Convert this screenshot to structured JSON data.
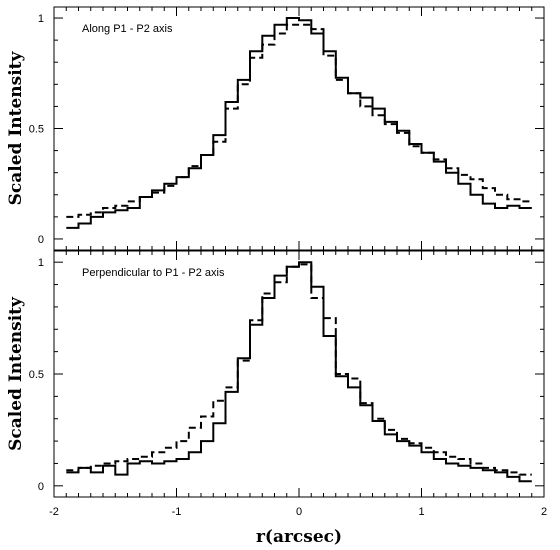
{
  "chart_data": [
    {
      "type": "line",
      "step": true,
      "panel_label": "Along P1 - P2 axis",
      "ylabel": "Scaled Intensity",
      "xlabel": "",
      "xlim": [
        -2,
        2
      ],
      "ylim": [
        -0.05,
        1.05
      ],
      "xticks": [
        "-2",
        "-1",
        "0",
        "1",
        "2"
      ],
      "yticks": [
        "0",
        "0.5",
        "1"
      ],
      "x_edges": [
        -1.9,
        -1.8,
        -1.7,
        -1.6,
        -1.5,
        -1.4,
        -1.3,
        -1.2,
        -1.1,
        -1.0,
        -0.9,
        -0.8,
        -0.7,
        -0.6,
        -0.5,
        -0.4,
        -0.3,
        -0.2,
        -0.1,
        0.0,
        0.1,
        0.2,
        0.3,
        0.4,
        0.5,
        0.6,
        0.7,
        0.8,
        0.9,
        1.0,
        1.1,
        1.2,
        1.3,
        1.4,
        1.5,
        1.6,
        1.7,
        1.8,
        1.9
      ],
      "series": [
        {
          "style": "solid",
          "values": [
            0.05,
            0.07,
            0.1,
            0.12,
            0.13,
            0.14,
            0.19,
            0.22,
            0.25,
            0.28,
            0.32,
            0.38,
            0.47,
            0.62,
            0.72,
            0.85,
            0.92,
            0.97,
            1.0,
            0.99,
            0.93,
            0.85,
            0.73,
            0.66,
            0.64,
            0.59,
            0.53,
            0.49,
            0.43,
            0.39,
            0.35,
            0.3,
            0.25,
            0.2,
            0.16,
            0.14,
            0.15,
            0.14
          ]
        },
        {
          "style": "dashed",
          "values": [
            0.1,
            0.11,
            0.12,
            0.14,
            0.15,
            0.17,
            0.19,
            0.21,
            0.24,
            0.28,
            0.33,
            0.38,
            0.44,
            0.59,
            0.7,
            0.82,
            0.88,
            0.93,
            0.97,
            0.97,
            0.95,
            0.83,
            0.72,
            0.66,
            0.6,
            0.56,
            0.52,
            0.48,
            0.42,
            0.39,
            0.36,
            0.32,
            0.29,
            0.27,
            0.23,
            0.2,
            0.18,
            0.17
          ]
        }
      ]
    },
    {
      "type": "line",
      "step": true,
      "panel_label": "Perpendicular to P1 - P2 axis",
      "ylabel": "Scaled Intensity",
      "xlabel": "r(arcsec)",
      "xlim": [
        -2,
        2
      ],
      "ylim": [
        -0.05,
        1.05
      ],
      "xticks": [
        "-2",
        "-1",
        "0",
        "1",
        "2"
      ],
      "yticks": [
        "0",
        "0.5",
        "1"
      ],
      "x_edges": [
        -1.9,
        -1.8,
        -1.7,
        -1.6,
        -1.5,
        -1.4,
        -1.3,
        -1.2,
        -1.1,
        -1.0,
        -0.9,
        -0.8,
        -0.7,
        -0.6,
        -0.5,
        -0.4,
        -0.3,
        -0.2,
        -0.1,
        0.0,
        0.1,
        0.2,
        0.3,
        0.4,
        0.5,
        0.6,
        0.7,
        0.8,
        0.9,
        1.0,
        1.1,
        1.2,
        1.3,
        1.4,
        1.5,
        1.6,
        1.7,
        1.8,
        1.9
      ],
      "series": [
        {
          "style": "solid",
          "values": [
            0.06,
            0.08,
            0.06,
            0.09,
            0.05,
            0.1,
            0.11,
            0.1,
            0.11,
            0.12,
            0.15,
            0.2,
            0.28,
            0.42,
            0.57,
            0.72,
            0.84,
            0.94,
            0.98,
            1.0,
            0.89,
            0.67,
            0.49,
            0.44,
            0.36,
            0.29,
            0.23,
            0.2,
            0.18,
            0.15,
            0.12,
            0.1,
            0.09,
            0.08,
            0.07,
            0.06,
            0.04,
            0.02
          ]
        },
        {
          "style": "dashed",
          "values": [
            0.07,
            0.08,
            0.09,
            0.1,
            0.11,
            0.12,
            0.13,
            0.15,
            0.17,
            0.2,
            0.26,
            0.31,
            0.38,
            0.44,
            0.56,
            0.74,
            0.86,
            0.91,
            0.98,
            0.99,
            0.84,
            0.75,
            0.5,
            0.48,
            0.37,
            0.3,
            0.25,
            0.21,
            0.19,
            0.17,
            0.15,
            0.13,
            0.12,
            0.1,
            0.08,
            0.07,
            0.06,
            0.05
          ]
        }
      ]
    }
  ]
}
